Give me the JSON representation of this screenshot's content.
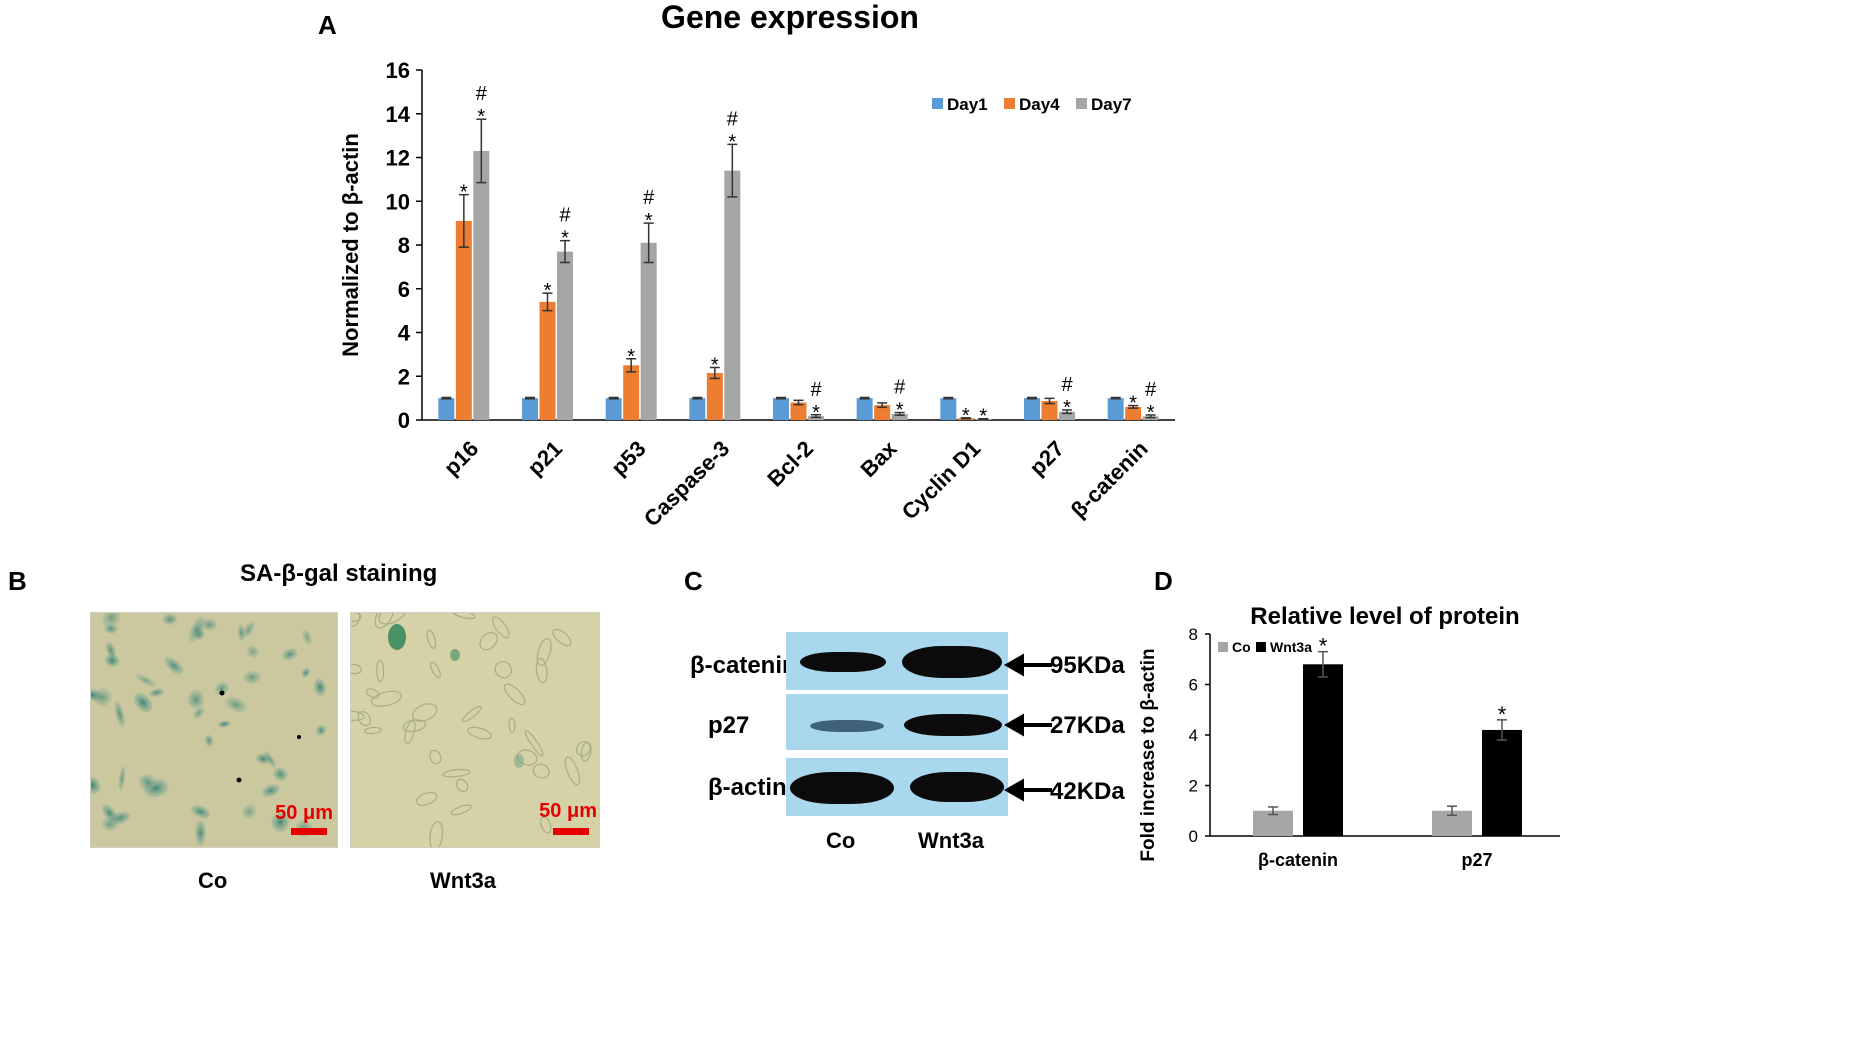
{
  "panel_a": {
    "letter": "A",
    "chart_data": {
      "type": "bar",
      "title": "Gene expression",
      "ylabel": "Normalized to β-actin",
      "xlabel": "",
      "ylim": [
        0,
        16
      ],
      "yticks": [
        0,
        2,
        4,
        6,
        8,
        10,
        12,
        14,
        16
      ],
      "categories": [
        "p16",
        "p21",
        "p53",
        "Caspase-3",
        "Bcl-2",
        "Bax",
        "Cyclin D1",
        "p27",
        "β-catenin"
      ],
      "legend_position": "top-right",
      "series": [
        {
          "name": "Day1",
          "color": "#5b9bd5",
          "values": [
            1,
            1,
            1,
            1,
            1,
            1,
            1,
            1,
            1
          ],
          "errors": [
            0.03,
            0.03,
            0.03,
            0.03,
            0.03,
            0.03,
            0.03,
            0.03,
            0.03
          ],
          "annotations": [
            "",
            "",
            "",
            "",
            "",
            "",
            "",
            "",
            ""
          ]
        },
        {
          "name": "Day4",
          "color": "#ed7d31",
          "values": [
            9.1,
            5.4,
            2.5,
            2.15,
            0.8,
            0.68,
            0.08,
            0.87,
            0.6
          ],
          "errors": [
            1.2,
            0.4,
            0.3,
            0.25,
            0.1,
            0.1,
            0.02,
            0.12,
            0.06
          ],
          "annotations": [
            "*",
            "*",
            "*",
            "*",
            "",
            "",
            "*",
            "",
            "*"
          ]
        },
        {
          "name": "Day7",
          "color": "#a5a5a5",
          "values": [
            12.3,
            7.7,
            8.1,
            11.4,
            0.18,
            0.28,
            0.04,
            0.38,
            0.17
          ],
          "errors": [
            1.45,
            0.5,
            0.9,
            1.2,
            0.06,
            0.06,
            0.02,
            0.08,
            0.06
          ],
          "annotations": [
            "#\n*",
            "#\n*",
            "#\n*",
            "#\n*",
            "#\n*",
            "#\n*",
            "*",
            "#\n*",
            "#\n*"
          ]
        }
      ]
    }
  },
  "panel_b": {
    "letter": "B",
    "title": "SA-β-gal staining",
    "images": [
      {
        "caption": "Co",
        "scale_bar": "50 μm",
        "scale_color": "#e60000"
      },
      {
        "caption": "Wnt3a",
        "scale_bar": "50 μm",
        "scale_color": "#e60000"
      }
    ]
  },
  "panel_c": {
    "letter": "C",
    "rows": [
      {
        "label": "β-catenin",
        "size": "95KDa",
        "band_strength": [
          0.6,
          1.0
        ]
      },
      {
        "label": "p27",
        "size": "27KDa",
        "band_strength": [
          0.35,
          0.95
        ]
      },
      {
        "label": "β-actin",
        "size": "42KDa",
        "band_strength": [
          1.0,
          1.0
        ]
      }
    ],
    "lanes": [
      "Co",
      "Wnt3a"
    ]
  },
  "panel_d": {
    "letter": "D",
    "chart_data": {
      "type": "bar",
      "title": "Relative level of protein",
      "ylabel": "Fold increase to β-actin",
      "xlabel": "",
      "ylim": [
        0,
        8
      ],
      "yticks": [
        0,
        2,
        4,
        6,
        8
      ],
      "categories": [
        "β-catenin",
        "p27"
      ],
      "legend_position": "top-left",
      "series": [
        {
          "name": "Co",
          "color": "#a6a6a6",
          "values": [
            1,
            1
          ],
          "errors": [
            0.15,
            0.18
          ],
          "annotations": [
            "",
            ""
          ]
        },
        {
          "name": "Wnt3a",
          "color": "#000000",
          "values": [
            6.8,
            4.2
          ],
          "errors": [
            0.5,
            0.4
          ],
          "annotations": [
            "*",
            "*"
          ]
        }
      ]
    }
  }
}
